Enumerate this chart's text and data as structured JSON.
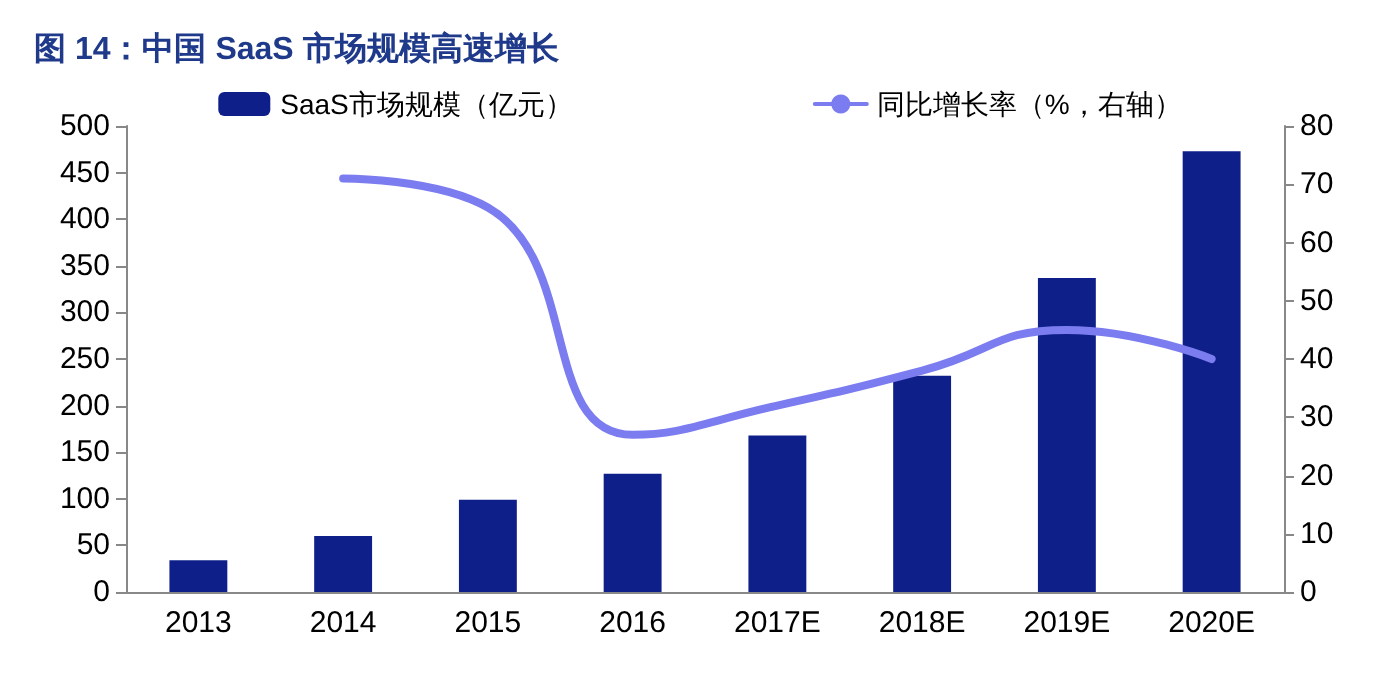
{
  "chart_data": {
    "type": "bar",
    "title": "图 14：中国 SaaS 市场规模高速增长",
    "categories": [
      "2013",
      "2014",
      "2015",
      "2016",
      "2017E",
      "2018E",
      "2019E",
      "2020E"
    ],
    "series": [
      {
        "name": "SaaS市场规模（亿元）",
        "color": "#0f1f8a",
        "values": [
          34,
          60,
          99,
          127,
          168,
          232,
          337,
          473
        ]
      },
      {
        "name": "同比增长率（%，右轴）",
        "type": "line",
        "axis": "y2",
        "color": "#7b7cf0",
        "values": [
          null,
          71,
          66,
          27,
          32,
          38,
          45,
          40
        ]
      }
    ],
    "ylim": [
      0,
      500
    ],
    "yticks": [
      0,
      50,
      100,
      150,
      200,
      250,
      300,
      350,
      400,
      450,
      500
    ],
    "y2lim": [
      0,
      80
    ],
    "y2ticks": [
      0,
      10,
      20,
      30,
      40,
      50,
      60,
      70,
      80
    ],
    "grid": false,
    "legend": "top",
    "marker": "none",
    "line_style": "solid"
  }
}
